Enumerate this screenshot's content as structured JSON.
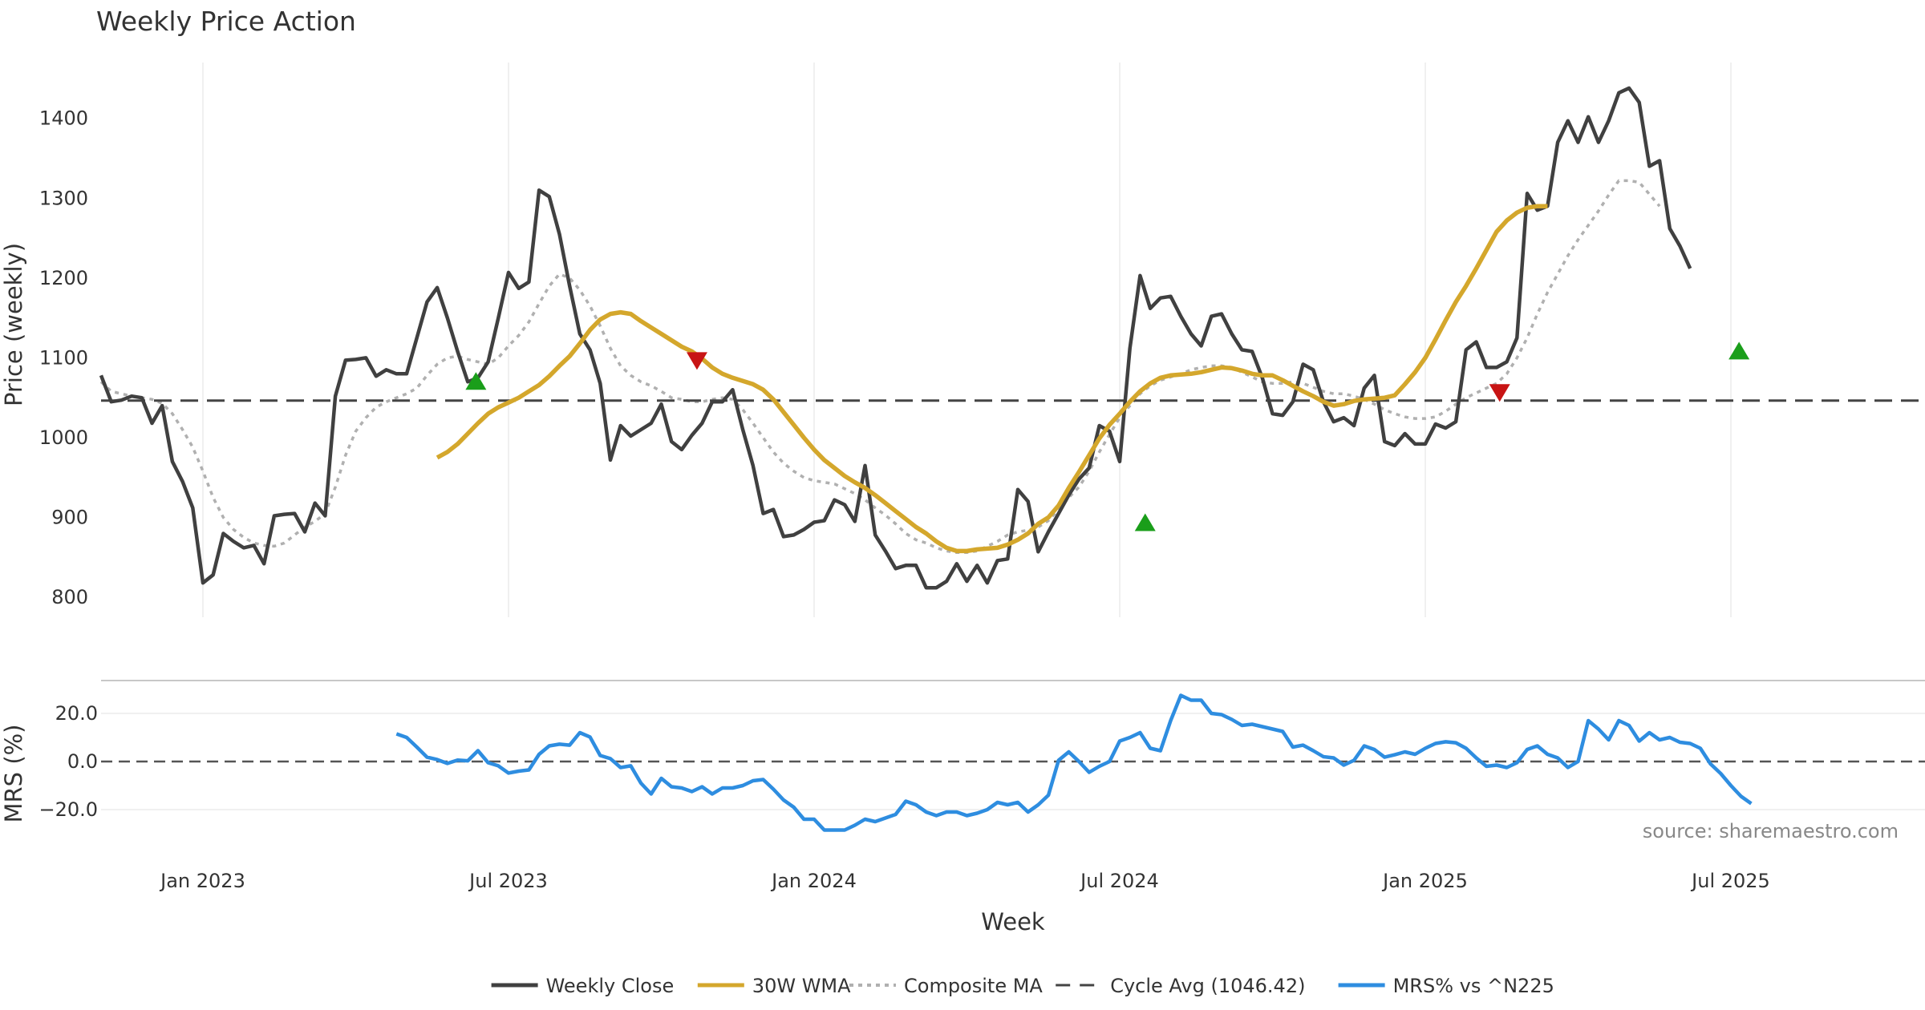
{
  "chart_data": {
    "type": "line",
    "title": "Weekly Price Action",
    "xlabel": "Week",
    "ylabel": "Price (weekly)",
    "ylabel_lower": "MRS (%)",
    "source": "source: sharemaestro.com",
    "grid": true,
    "legend_position": "bottom-center",
    "x_ticks": [
      "Jan 2023",
      "Jul 2023",
      "Jan 2024",
      "Jul 2024",
      "Jan 2025",
      "Jul 2025"
    ],
    "x_tick_weeks": [
      10,
      40,
      70,
      100,
      130,
      160
    ],
    "y_ticks": [
      800,
      900,
      1000,
      1100,
      1200,
      1300,
      1400
    ],
    "ylim": [
      775,
      1470
    ],
    "y_ticks_lower": [
      "20.0",
      "0.0",
      "−20.0"
    ],
    "ylim_lower": [
      -30,
      30
    ],
    "colors": {
      "close": "#404040",
      "wma": "#d4a72c",
      "composite": "#b0b0b0",
      "cycle": "#444444",
      "mrs": "#2e8de0",
      "buy": "#1a9e1a",
      "sell": "#c81414",
      "grid": "#ececec"
    },
    "legend": [
      {
        "label": "Weekly Close",
        "style": "solid",
        "color": "#404040"
      },
      {
        "label": "30W WMA",
        "style": "solid",
        "color": "#d4a72c"
      },
      {
        "label": "Composite MA",
        "style": "dotted",
        "color": "#b0b0b0"
      },
      {
        "label": "Cycle Avg (1046.42)",
        "style": "dashed",
        "color": "#444444"
      },
      {
        "label": "MRS% vs ^N225",
        "style": "solid",
        "color": "#2e8de0"
      }
    ],
    "cycle_avg": 1046.42,
    "series": [
      {
        "name": "Weekly Close",
        "x_start": 0,
        "values": [
          1078,
          1045,
          1047,
          1052,
          1050,
          1018,
          1040,
          970,
          945,
          912,
          818,
          828,
          880,
          870,
          862,
          865,
          842,
          902,
          904,
          905,
          882,
          918,
          902,
          1052,
          1097,
          1098,
          1100,
          1077,
          1085,
          1080,
          1080,
          1125,
          1170,
          1188,
          1150,
          1108,
          1070,
          1075,
          1095,
          1150,
          1207,
          1187,
          1195,
          1310,
          1302,
          1255,
          1190,
          1130,
          1110,
          1068,
          972,
          1015,
          1002,
          1010,
          1018,
          1042,
          995,
          985,
          1003,
          1018,
          1045,
          1045,
          1060,
          1010,
          965,
          905,
          910,
          876,
          878,
          885,
          894,
          896,
          922,
          916,
          895,
          965,
          878,
          858,
          836,
          840,
          840,
          812,
          812,
          820,
          842,
          820,
          840,
          818,
          846,
          848,
          935,
          920,
          857,
          882,
          905,
          928,
          948,
          962,
          1015,
          1008,
          970,
          1112,
          1203,
          1162,
          1175,
          1177,
          1152,
          1130,
          1115,
          1152,
          1155,
          1130,
          1110,
          1108,
          1075,
          1030,
          1028,
          1045,
          1092,
          1085,
          1045,
          1020,
          1025,
          1015,
          1062,
          1078,
          995,
          990,
          1005,
          992,
          992,
          1017,
          1012,
          1020,
          1110,
          1120,
          1088,
          1088,
          1095,
          1125,
          1306,
          1285,
          1290,
          1370,
          1397,
          1370,
          1402,
          1370,
          1397,
          1432,
          1438,
          1420,
          1340,
          1347,
          1262,
          1240,
          1212
        ]
      },
      {
        "name": "30W WMA",
        "x_start": 33,
        "values": [
          975,
          982,
          992,
          1005,
          1018,
          1030,
          1038,
          1044,
          1050,
          1058,
          1066,
          1077,
          1090,
          1102,
          1118,
          1135,
          1148,
          1155,
          1157,
          1155,
          1146,
          1138,
          1130,
          1122,
          1114,
          1108,
          1099,
          1088,
          1080,
          1075,
          1071,
          1067,
          1060,
          1048,
          1032,
          1016,
          1000,
          985,
          972,
          962,
          952,
          944,
          937,
          928,
          918,
          908,
          898,
          888,
          880,
          870,
          862,
          858,
          858,
          860,
          861,
          862,
          866,
          872,
          880,
          892,
          900,
          915,
          937,
          957,
          978,
          999,
          1016,
          1030,
          1045,
          1058,
          1068,
          1075,
          1078,
          1079,
          1080,
          1082,
          1085,
          1088,
          1087,
          1084,
          1080,
          1078,
          1078,
          1072,
          1065,
          1058,
          1052,
          1045,
          1040,
          1042,
          1046,
          1048,
          1049,
          1050,
          1053,
          1067,
          1082,
          1100,
          1123,
          1147,
          1170,
          1190,
          1212,
          1235,
          1258,
          1272,
          1282,
          1288,
          1290,
          1290
        ]
      },
      {
        "name": "Composite MA",
        "x_start": 0,
        "values": [
          1070,
          1058,
          1055,
          1052,
          1050,
          1048,
          1043,
          1030,
          1010,
          988,
          958,
          925,
          900,
          885,
          875,
          868,
          865,
          864,
          868,
          878,
          888,
          895,
          905,
          938,
          978,
          1008,
          1025,
          1038,
          1045,
          1050,
          1055,
          1062,
          1078,
          1092,
          1100,
          1102,
          1098,
          1095,
          1092,
          1100,
          1115,
          1128,
          1145,
          1168,
          1190,
          1205,
          1200,
          1185,
          1165,
          1140,
          1112,
          1090,
          1078,
          1070,
          1065,
          1058,
          1050,
          1048,
          1045,
          1045,
          1048,
          1050,
          1048,
          1035,
          1018,
          1000,
          982,
          968,
          958,
          950,
          946,
          944,
          942,
          936,
          930,
          922,
          912,
          903,
          892,
          880,
          872,
          868,
          862,
          858,
          856,
          856,
          858,
          864,
          870,
          878,
          882,
          884,
          888,
          896,
          910,
          925,
          938,
          958,
          982,
          1004,
          1025,
          1040,
          1055,
          1065,
          1072,
          1076,
          1080,
          1085,
          1088,
          1090,
          1090,
          1088,
          1082,
          1076,
          1070,
          1068,
          1068,
          1070,
          1068,
          1063,
          1058,
          1055,
          1055,
          1052,
          1048,
          1042,
          1035,
          1030,
          1026,
          1024,
          1024,
          1026,
          1033,
          1042,
          1050,
          1056,
          1062,
          1068,
          1080,
          1100,
          1125,
          1155,
          1182,
          1205,
          1228,
          1248,
          1266,
          1284,
          1304,
          1322,
          1322,
          1320,
          1305,
          1290
        ]
      },
      {
        "name": "MRS% vs ^N225",
        "axis": "lower",
        "x_start": 29,
        "values": [
          11.5,
          10,
          6,
          1.8,
          0.8,
          -0.8,
          0.6,
          0.3,
          4.5,
          -0.5,
          -1.8,
          -4.8,
          -4,
          -3.5,
          3,
          6.5,
          7.2,
          6.8,
          12,
          10.2,
          2.5,
          1.2,
          -2.5,
          -1.8,
          -9,
          -13.5,
          -7,
          -10.5,
          -11,
          -12.5,
          -10.5,
          -13.5,
          -11,
          -11,
          -10,
          -8,
          -7.5,
          -11.5,
          -16,
          -19,
          -24,
          -24,
          -28.5,
          -28.5,
          -28.5,
          -26.5,
          -24,
          -25,
          -23.5,
          -22,
          -16.5,
          -18,
          -21,
          -22.5,
          -21,
          -21,
          -22.5,
          -21.5,
          -20,
          -17,
          -18,
          -17,
          -21,
          -18,
          -14,
          0.5,
          4,
          0,
          -4.5,
          -2,
          0,
          8.5,
          10,
          12,
          5.5,
          4.5,
          17,
          27.5,
          25.5,
          25.5,
          20,
          19.5,
          17.5,
          15,
          15.5,
          14.5,
          13.5,
          12.5,
          6,
          6.8,
          4.5,
          2,
          1.5,
          -1.5,
          0.5,
          6.5,
          5,
          1.8,
          2.8,
          4,
          3,
          5.5,
          7.5,
          8.2,
          7.8,
          5.5,
          1.5,
          -2,
          -1.5,
          -2.5,
          -0.5,
          5,
          6.5,
          3,
          1.5,
          -2.5,
          0,
          17,
          13.5,
          9,
          17,
          15,
          8.5,
          12,
          9,
          10,
          8,
          7.5,
          5.5,
          -1,
          -5,
          -10,
          -14.5,
          -17.5
        ]
      }
    ],
    "buy_signals": [
      {
        "x": 36.8,
        "y": 1070
      },
      {
        "x": 102.5,
        "y": 893
      },
      {
        "x": 160.8,
        "y": 1108
      }
    ],
    "sell_signals": [
      {
        "x": 58.5,
        "y": 1097
      },
      {
        "x": 137.3,
        "y": 1057
      }
    ]
  }
}
